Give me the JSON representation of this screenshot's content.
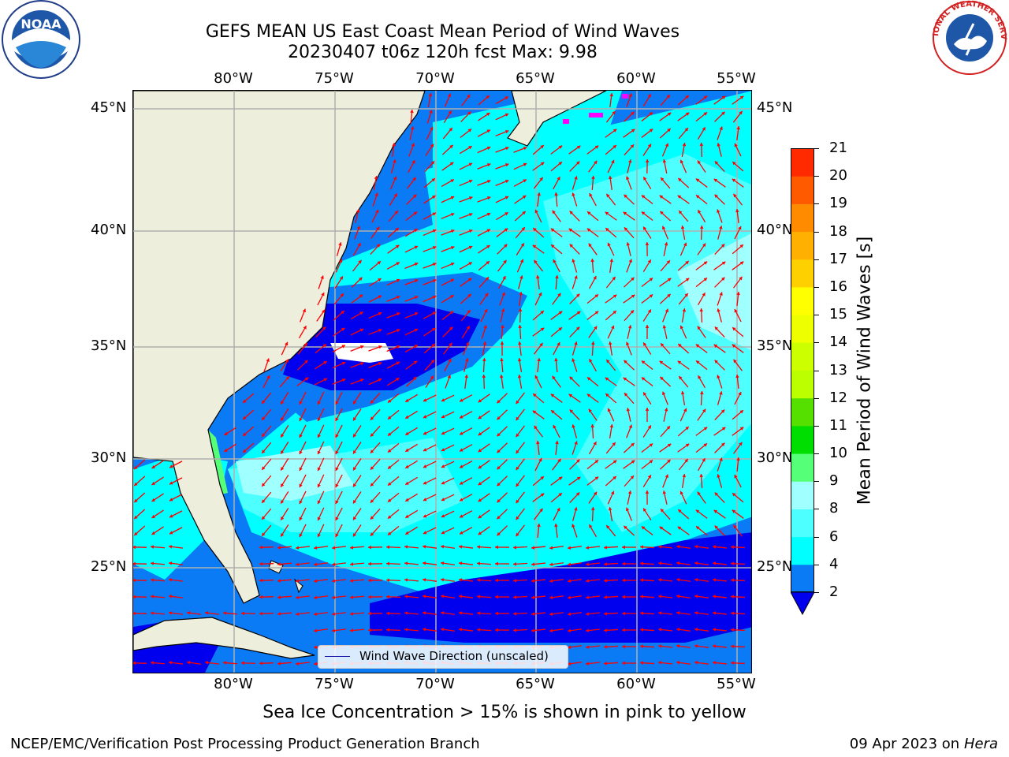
{
  "header": {
    "title_line1": "GEFS MEAN US East Coast Mean Period of Wind Waves",
    "title_line2": "20230407 t06z 120h fcst   Max: 9.98"
  },
  "logos": {
    "left": "noaa-logo",
    "left_text": "NOAA",
    "right": "nws-logo",
    "right_text": "NATIONAL WEATHER SERVICE"
  },
  "axes": {
    "lon_labels": [
      "80°W",
      "75°W",
      "70°W",
      "65°W",
      "60°W",
      "55°W"
    ],
    "lat_labels": [
      "45°N",
      "40°N",
      "35°N",
      "30°N",
      "25°N"
    ]
  },
  "map": {
    "lon_range": [
      -85,
      -54.2
    ],
    "lat_range": [
      20.5,
      46
    ],
    "land_color": "#eeeedd",
    "grid_color": "#b0b0b0",
    "arrow_color": "#ff0000",
    "legend_label": "Wind Wave Direction (unscaled)"
  },
  "colorbar": {
    "label": "Mean Period of Wind Waves [s]",
    "ticks": [
      "2",
      "4",
      "6",
      "8",
      "9",
      "10",
      "11",
      "12",
      "13",
      "14",
      "15",
      "16",
      "17",
      "18",
      "19",
      "20",
      "21"
    ],
    "colors": [
      "#0a7af5",
      "#00ffff",
      "#4dffff",
      "#a0ffff",
      "#55ff77",
      "#00dd00",
      "#55e000",
      "#bbff00",
      "#ccff00",
      "#eeff00",
      "#ffff00",
      "#ffd000",
      "#ffb000",
      "#ff8c00",
      "#ff5a00",
      "#ff2a00"
    ],
    "under_color": "#0000ee"
  },
  "footer": {
    "note": "Sea Ice Concentration > 15% is shown in pink to yellow",
    "credit": "NCEP/EMC/Verification Post Processing Product Generation Branch",
    "date": "09 Apr 2023 on ",
    "host": "Hera"
  }
}
